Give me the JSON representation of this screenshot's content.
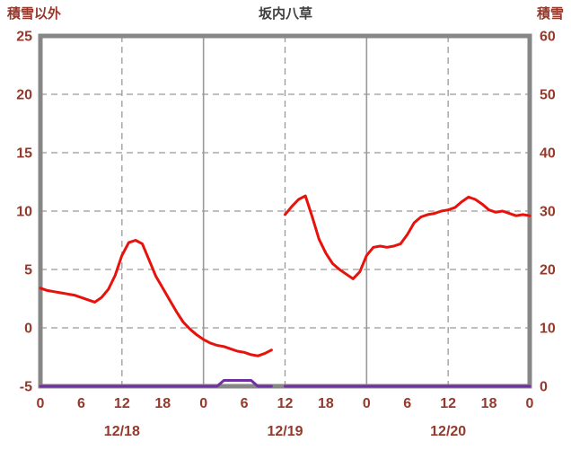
{
  "header": {
    "left_label": "積雪以外",
    "title": "坂内八草",
    "right_label": "積雪"
  },
  "colors": {
    "axis_text": "#94392b",
    "title_text": "#404040",
    "grid": "#999999",
    "border": "#878787",
    "temp_line": "#e8120c",
    "snow_line": "#7030a0",
    "background": "#ffffff"
  },
  "chart_data": {
    "type": "line",
    "title": "坂内八草",
    "left_axis": {
      "label": "積雪以外",
      "min": -5,
      "max": 25,
      "ticks": [
        25,
        20,
        15,
        10,
        5,
        0,
        -5
      ]
    },
    "right_axis": {
      "label": "積雪",
      "min": 0,
      "max": 60,
      "ticks": [
        60,
        50,
        40,
        30,
        20,
        10,
        0
      ]
    },
    "x_axis": {
      "hours_span": 72,
      "tick_hours": [
        0,
        6,
        12,
        18,
        24,
        30,
        36,
        42,
        48,
        54,
        60,
        66,
        72
      ],
      "tick_labels": [
        "0",
        "6",
        "12",
        "18",
        "0",
        "6",
        "12",
        "18",
        "0",
        "6",
        "12",
        "18",
        "0"
      ],
      "date_labels": [
        {
          "text": "12/18",
          "hour": 12
        },
        {
          "text": "12/19",
          "hour": 36
        },
        {
          "text": "12/20",
          "hour": 60
        }
      ],
      "solid_grid_hours": [
        24,
        48
      ],
      "dashed_grid_hours": [
        12,
        36,
        60
      ]
    },
    "series": [
      {
        "name": "積雪以外",
        "axis": "left",
        "color": "#e8120c",
        "values": [
          3.4,
          3.2,
          3.1,
          3.0,
          2.9,
          2.8,
          2.6,
          2.4,
          2.2,
          2.6,
          3.3,
          4.5,
          6.2,
          7.3,
          7.5,
          7.2,
          5.8,
          4.4,
          3.4,
          2.4,
          1.4,
          0.5,
          -0.1,
          -0.6,
          -1.0,
          -1.3,
          -1.5,
          -1.6,
          -1.8,
          -2.0,
          -2.1,
          -2.3,
          -2.4,
          -2.2,
          -1.9,
          null,
          9.7,
          10.4,
          11.0,
          11.3,
          9.5,
          7.6,
          6.4,
          5.5,
          5.0,
          4.6,
          4.2,
          4.8,
          6.2,
          6.9,
          7.0,
          6.9,
          7.0,
          7.2,
          8.0,
          9.0,
          9.5,
          9.7,
          9.8,
          10.0,
          10.1,
          10.3,
          10.8,
          11.2,
          11.0,
          10.6,
          10.1,
          9.9,
          10.0,
          9.8,
          9.6,
          9.7,
          9.6
        ]
      },
      {
        "name": "積雪",
        "axis": "right",
        "color": "#7030a0",
        "values": [
          0,
          0,
          0,
          0,
          0,
          0,
          0,
          0,
          0,
          0,
          0,
          0,
          0,
          0,
          0,
          0,
          0,
          0,
          0,
          0,
          0,
          0,
          0,
          0,
          0,
          0,
          0,
          1,
          1,
          1,
          1,
          1,
          0,
          0,
          0,
          null,
          0,
          0,
          0,
          0,
          0,
          0,
          0,
          0,
          0,
          0,
          0,
          0,
          0,
          0,
          0,
          0,
          0,
          0,
          0,
          0,
          0,
          0,
          0,
          0,
          0,
          0,
          0,
          0,
          0,
          0,
          0,
          0,
          0,
          0,
          0,
          0,
          0
        ]
      }
    ]
  }
}
